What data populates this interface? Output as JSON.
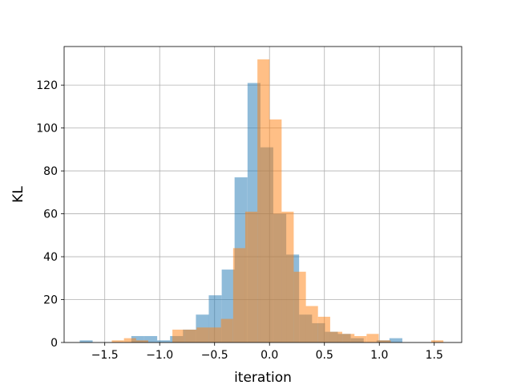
{
  "chart_data": {
    "type": "bar",
    "title": "",
    "xlabel": "iteration",
    "ylabel": "KL",
    "xlim": [
      -1.87,
      1.75
    ],
    "ylim": [
      0,
      138
    ],
    "xticks": [
      -1.5,
      -1.0,
      -0.5,
      0.0,
      0.5,
      1.0,
      1.5
    ],
    "xtick_labels": [
      "−1.5",
      "−1.0",
      "−0.5",
      "0.0",
      "0.5",
      "1.0",
      "1.5"
    ],
    "yticks": [
      0,
      20,
      40,
      60,
      80,
      100,
      120
    ],
    "ytick_labels": [
      "0",
      "20",
      "40",
      "60",
      "80",
      "100",
      "120"
    ],
    "grid": true,
    "legend": "none",
    "bar_opacity": 0.5,
    "overlap_color": "#c39671",
    "series": [
      {
        "color": "#1f77b4",
        "bin_width": 0.1175,
        "bins": [
          {
            "x0": -1.728,
            "count": 1
          },
          {
            "x0": -1.258,
            "count": 3
          },
          {
            "x0": -1.14,
            "count": 3
          },
          {
            "x0": -1.023,
            "count": 1
          },
          {
            "x0": -0.905,
            "count": 3
          },
          {
            "x0": -0.788,
            "count": 6
          },
          {
            "x0": -0.67,
            "count": 13
          },
          {
            "x0": -0.553,
            "count": 22
          },
          {
            "x0": -0.435,
            "count": 34
          },
          {
            "x0": -0.318,
            "count": 77
          },
          {
            "x0": -0.2,
            "count": 121
          },
          {
            "x0": -0.083,
            "count": 91
          },
          {
            "x0": 0.035,
            "count": 60
          },
          {
            "x0": 0.152,
            "count": 41
          },
          {
            "x0": 0.27,
            "count": 13
          },
          {
            "x0": 0.387,
            "count": 9
          },
          {
            "x0": 0.505,
            "count": 5
          },
          {
            "x0": 0.622,
            "count": 4
          },
          {
            "x0": 0.74,
            "count": 2
          },
          {
            "x0": 0.975,
            "count": 1
          },
          {
            "x0": 1.092,
            "count": 2
          }
        ]
      },
      {
        "color": "#ff7f0e",
        "bin_width": 0.1104,
        "bins": [
          {
            "x0": -1.436,
            "count": 1
          },
          {
            "x0": -1.325,
            "count": 2
          },
          {
            "x0": -1.215,
            "count": 1
          },
          {
            "x0": -0.884,
            "count": 6
          },
          {
            "x0": -0.773,
            "count": 6
          },
          {
            "x0": -0.663,
            "count": 7
          },
          {
            "x0": -0.552,
            "count": 7
          },
          {
            "x0": -0.442,
            "count": 11
          },
          {
            "x0": -0.331,
            "count": 44
          },
          {
            "x0": -0.221,
            "count": 61
          },
          {
            "x0": -0.11,
            "count": 132
          },
          {
            "x0": 0.0,
            "count": 104
          },
          {
            "x0": 0.11,
            "count": 61
          },
          {
            "x0": 0.221,
            "count": 33
          },
          {
            "x0": 0.331,
            "count": 17
          },
          {
            "x0": 0.442,
            "count": 12
          },
          {
            "x0": 0.552,
            "count": 5
          },
          {
            "x0": 0.663,
            "count": 4
          },
          {
            "x0": 0.773,
            "count": 3
          },
          {
            "x0": 0.884,
            "count": 4
          },
          {
            "x0": 0.994,
            "count": 1
          },
          {
            "x0": 1.473,
            "count": 1
          }
        ]
      }
    ]
  }
}
